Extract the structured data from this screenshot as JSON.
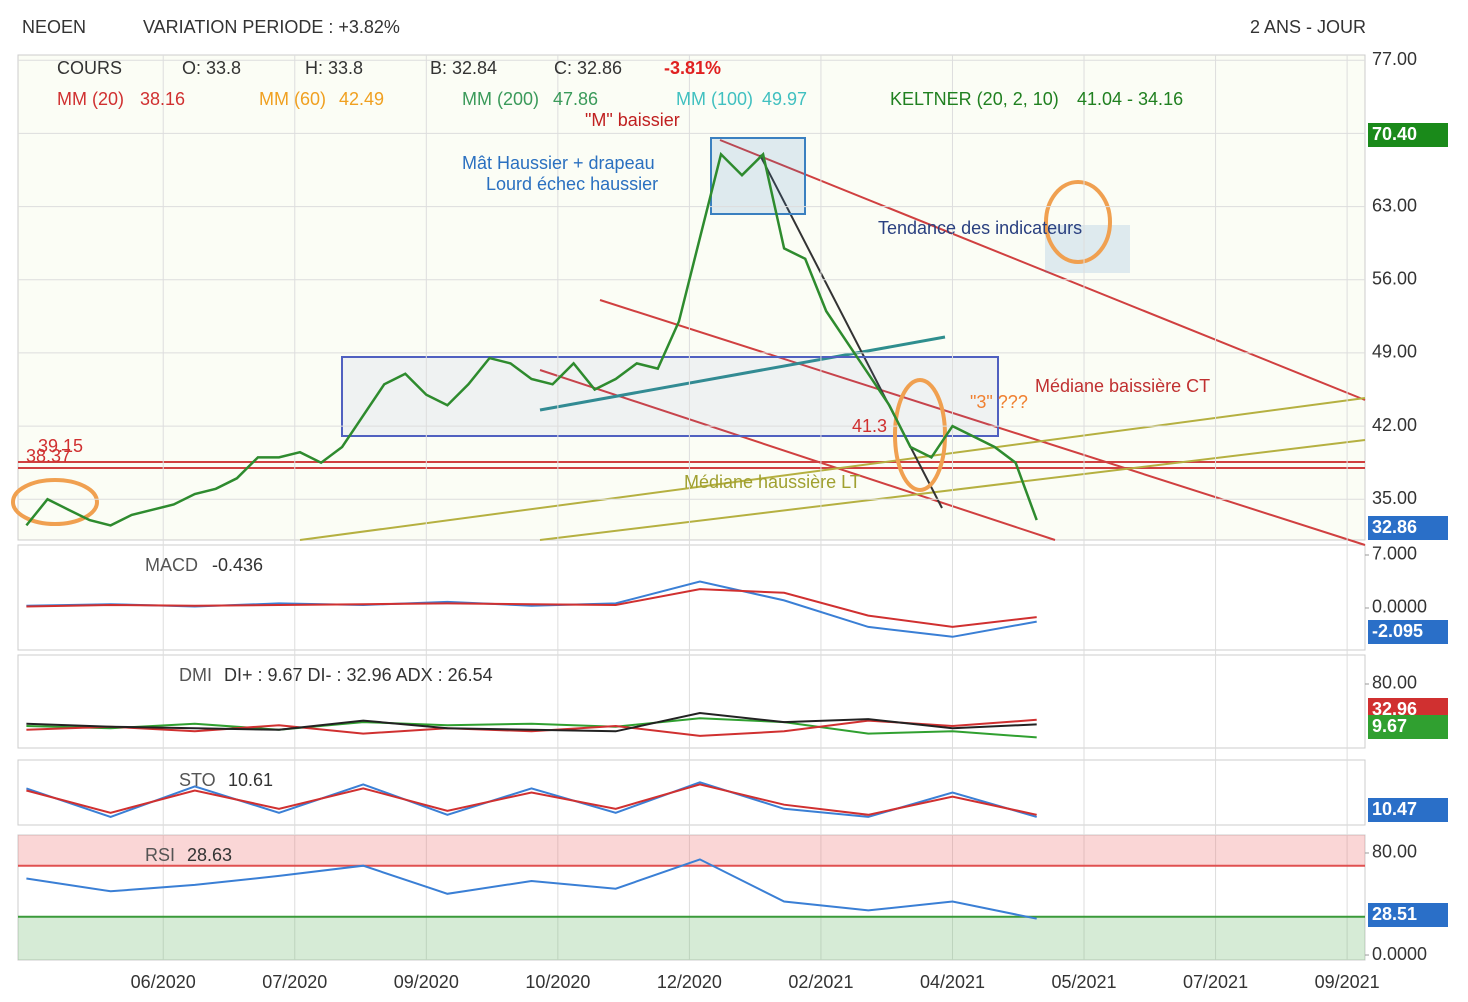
{
  "header": {
    "symbol": "NEOEN",
    "variation": "VARIATION PERIODE : +3.82%",
    "period": "2 ANS - JOUR"
  },
  "chart_data": [
    {
      "type": "line",
      "name": "COURS",
      "legend_items": [
        "COURS",
        "O: 33.8",
        "H: 33.8",
        "B: 32.84",
        "C: 32.86",
        "-3.81%"
      ],
      "legend_indicators": [
        "MM (20)",
        "38.16",
        "MM (60)",
        "42.49",
        "MM (200)",
        "47.86",
        "MM (100)",
        "49.97",
        "KELTNER (20, 2, 10)",
        "41.04 - 34.16"
      ],
      "annotations": [
        "\"M\" baissier",
        "Mât Haussier + drapeau",
        "Lourd échec haussier",
        "Tendance des indicateurs",
        "Médiane baissière CT",
        "Médiane haussière LT",
        "\"3\" ???",
        "39.15",
        "38.37",
        "41.3"
      ],
      "price_badges": [
        "70.40",
        "32.86"
      ],
      "xlim": [
        2020.262,
        2021.542
      ],
      "xticks": [
        {
          "value": 2020.4,
          "label": "06/2020"
        },
        {
          "value": 2020.525,
          "label": "07/2020"
        },
        {
          "value": 2020.65,
          "label": "09/2020"
        },
        {
          "value": 2020.775,
          "label": "10/2020"
        },
        {
          "value": 2020.9,
          "label": "12/2020"
        },
        {
          "value": 2021.025,
          "label": "02/2021"
        },
        {
          "value": 2021.15,
          "label": "04/2021"
        },
        {
          "value": 2021.275,
          "label": "05/2021"
        },
        {
          "value": 2021.4,
          "label": "07/2021"
        },
        {
          "value": 2021.525,
          "label": "09/2021"
        }
      ],
      "ylim": [
        31.1,
        77.5
      ],
      "yticks": [
        {
          "value": 35,
          "label": "35.00"
        },
        {
          "value": 42,
          "label": "42.00"
        },
        {
          "value": 49,
          "label": "49.00"
        },
        {
          "value": 56,
          "label": "56.00"
        },
        {
          "value": 63,
          "label": "63.00"
        },
        {
          "value": 70,
          "label": "70.00"
        },
        {
          "value": 77,
          "label": "77.00"
        }
      ],
      "x": [
        2020.27,
        2020.29,
        2020.31,
        2020.33,
        2020.35,
        2020.37,
        2020.39,
        2020.41,
        2020.43,
        2020.45,
        2020.47,
        2020.49,
        2020.51,
        2020.53,
        2020.55,
        2020.57,
        2020.59,
        2020.61,
        2020.63,
        2020.65,
        2020.67,
        2020.69,
        2020.71,
        2020.73,
        2020.75,
        2020.77,
        2020.79,
        2020.81,
        2020.83,
        2020.85,
        2020.87,
        2020.89,
        2020.91,
        2020.93,
        2020.95,
        2020.97,
        2020.99,
        2021.01,
        2021.03,
        2021.05,
        2021.07,
        2021.09,
        2021.11,
        2021.13,
        2021.15,
        2021.17,
        2021.19,
        2021.21,
        2021.23
      ],
      "series": [
        {
          "name": "COURS",
          "color": "#2e8b2e",
          "values": [
            32.5,
            35,
            34,
            33,
            32.5,
            33.5,
            34,
            34.5,
            35.5,
            36,
            37,
            39,
            39,
            39.5,
            38.5,
            40,
            43,
            46,
            47,
            45,
            44,
            46,
            48.5,
            48,
            46.5,
            46,
            48,
            45.5,
            46.5,
            48,
            47.5,
            52,
            60,
            68,
            66,
            68,
            59,
            58,
            53,
            50,
            47,
            44,
            40,
            39,
            42,
            41,
            40,
            38.5,
            33
          ]
        }
      ],
      "grid": true
    },
    {
      "type": "line",
      "title": "MACD",
      "subtitle": "-0.436",
      "last_label": "-2.095",
      "ylim": [
        -5.55,
        8.32
      ],
      "yticks": [
        {
          "value": 0,
          "label": "0.0000"
        },
        {
          "value": 7,
          "label": "7.000"
        }
      ],
      "x": [
        2020.27,
        2020.35,
        2020.43,
        2020.51,
        2020.59,
        2020.67,
        2020.75,
        2020.83,
        2020.91,
        2020.99,
        2021.07,
        2021.15,
        2021.23
      ],
      "series": [
        {
          "color": "#3a7fd5",
          "values": [
            0.3,
            0.5,
            0.2,
            0.6,
            0.4,
            0.8,
            0.3,
            0.6,
            3.5,
            1,
            -2.5,
            -3.8,
            -1.8
          ]
        },
        {
          "color": "#d03030",
          "values": [
            0.2,
            0.4,
            0.3,
            0.4,
            0.5,
            0.6,
            0.5,
            0.4,
            2.5,
            2,
            -1,
            -2.5,
            -1.2
          ]
        }
      ]
    },
    {
      "type": "line",
      "title": "DMI",
      "subtitle": "DI+ : 9.67 DI- : 32.96 ADX : 26.54",
      "last_label": "32.96",
      "last_label2": "9.67",
      "ylim": [
        -3.9,
        118
      ],
      "yticks": [
        {
          "value": 80,
          "label": "80.00"
        }
      ],
      "x": [
        2020.27,
        2020.35,
        2020.43,
        2020.51,
        2020.59,
        2020.67,
        2020.75,
        2020.83,
        2020.91,
        2020.99,
        2021.07,
        2021.15,
        2021.23
      ],
      "series": [
        {
          "color": "#30a030",
          "values": [
            25,
            22,
            28,
            20,
            30,
            26,
            28,
            24,
            35,
            30,
            15,
            18,
            10
          ]
        },
        {
          "color": "#d03030",
          "values": [
            20,
            24,
            18,
            26,
            15,
            22,
            18,
            25,
            12,
            18,
            32,
            25,
            33
          ]
        },
        {
          "color": "#222222",
          "values": [
            28,
            24,
            22,
            20,
            32,
            22,
            20,
            18,
            42,
            30,
            34,
            22,
            27
          ]
        }
      ]
    },
    {
      "type": "line",
      "title": "STO",
      "subtitle": "10.61",
      "last_label": "10.47",
      "ylim": [
        -10,
        150
      ],
      "x": [
        2020.27,
        2020.35,
        2020.43,
        2020.51,
        2020.59,
        2020.67,
        2020.75,
        2020.83,
        2020.91,
        2020.99,
        2021.07,
        2021.15,
        2021.23
      ],
      "series": [
        {
          "color": "#3a7fd5",
          "values": [
            80,
            10,
            85,
            20,
            90,
            15,
            80,
            20,
            95,
            30,
            10,
            70,
            10
          ]
        },
        {
          "color": "#d03030",
          "values": [
            75,
            20,
            75,
            30,
            80,
            25,
            70,
            30,
            90,
            40,
            15,
            60,
            15
          ]
        }
      ]
    },
    {
      "type": "line",
      "title": "RSI",
      "subtitle": "28.63",
      "last_label": "28.51",
      "ylim": [
        -3.9,
        94.1
      ],
      "yticks": [
        {
          "value": 0,
          "label": "0.0000"
        },
        {
          "value": 80,
          "label": "80.00"
        }
      ],
      "bands": [
        {
          "value": 70,
          "color": "#e05050"
        },
        {
          "value": 30,
          "color": "#3a9a3a"
        }
      ],
      "x": [
        2020.27,
        2020.35,
        2020.43,
        2020.51,
        2020.59,
        2020.67,
        2020.75,
        2020.83,
        2020.91,
        2020.99,
        2021.07,
        2021.15,
        2021.23
      ],
      "series": [
        {
          "color": "#3a7fd5",
          "values": [
            60,
            50,
            55,
            62,
            70,
            48,
            58,
            52,
            75,
            42,
            35,
            42,
            28.5
          ]
        }
      ]
    }
  ]
}
